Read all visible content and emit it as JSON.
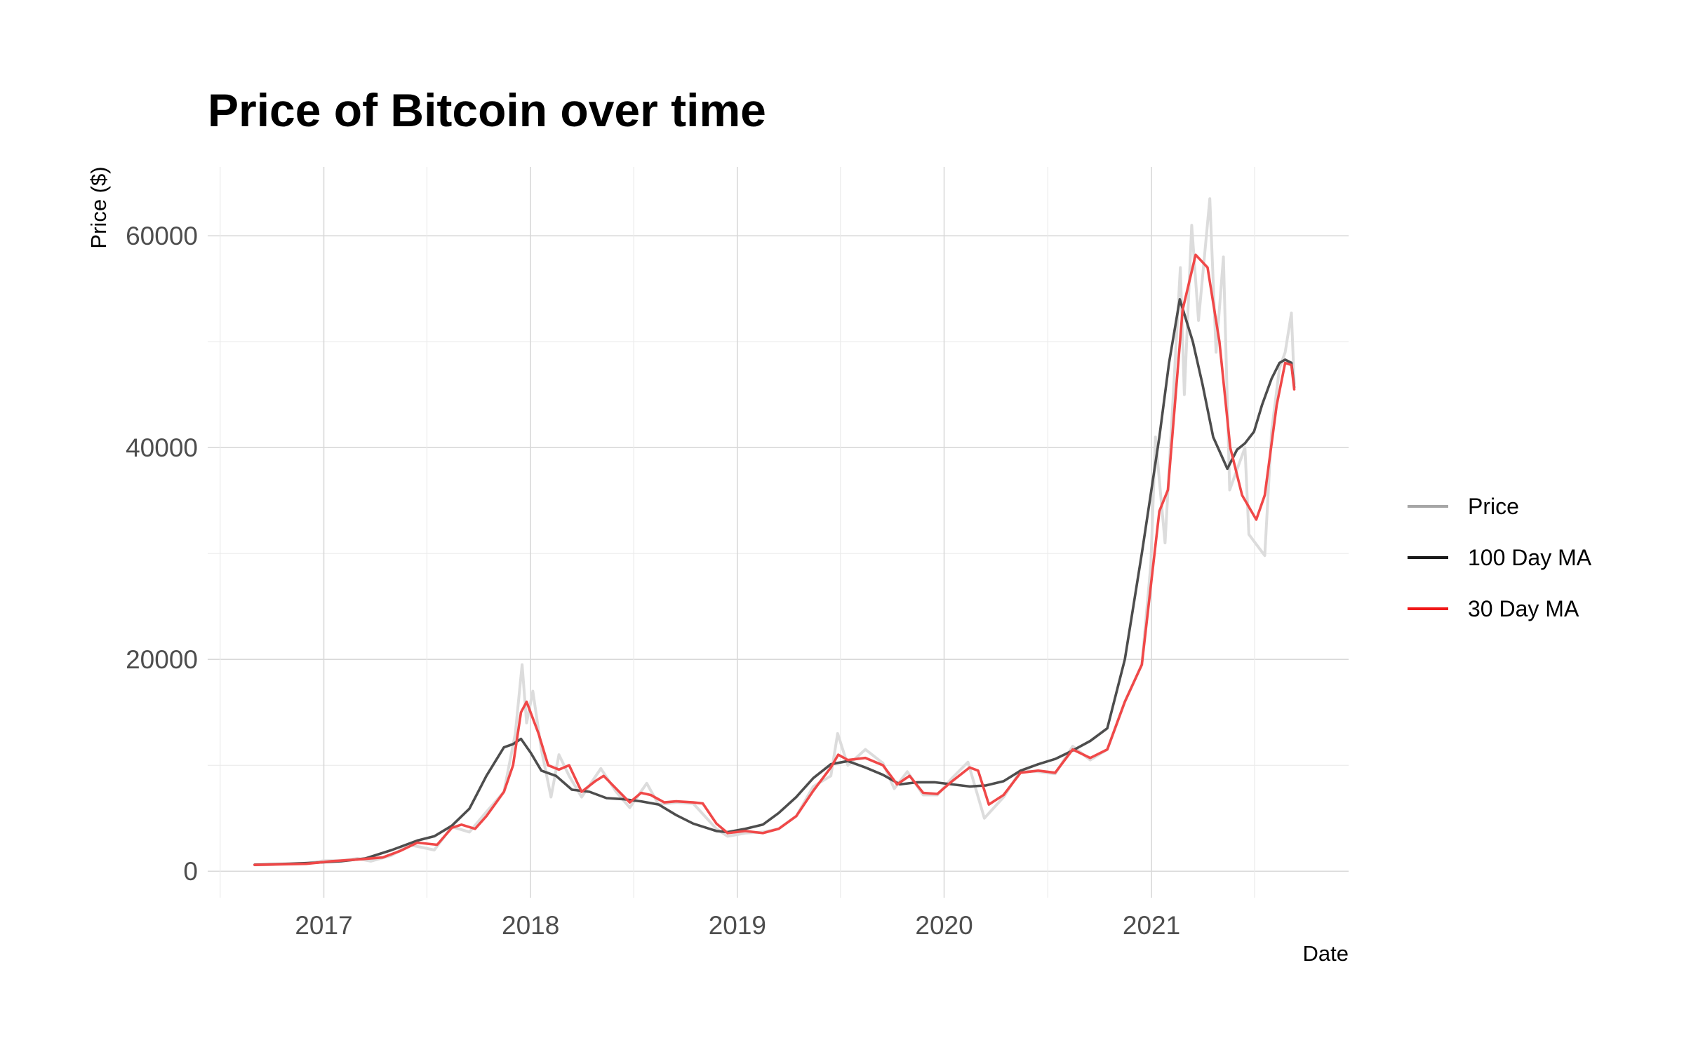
{
  "chart_data": {
    "type": "line",
    "title": "Price of Bitcoin over time",
    "xlabel": "Date",
    "ylabel": "Price ($)",
    "xlim": [
      "2016-06-10",
      "2021-12-15"
    ],
    "ylim": [
      -2500,
      66500
    ],
    "x_ticks": [
      "2017",
      "2018",
      "2019",
      "2020",
      "2021"
    ],
    "y_ticks": [
      0,
      20000,
      40000,
      60000
    ],
    "grid": true,
    "legend_position": "right",
    "colors": {
      "Price": "#dcdcdc",
      "100 Day MA": "#4d4d4d",
      "30 Day MA": "#f04848"
    },
    "legend_colors": {
      "Price": "#a6a6a6",
      "100 Day MA": "#1a1a1a",
      "30 Day MA": "#f01818"
    },
    "series": [
      {
        "name": "Price",
        "points": [
          [
            "2016-09-01",
            600
          ],
          [
            "2016-10-01",
            620
          ],
          [
            "2016-11-01",
            720
          ],
          [
            "2016-12-01",
            760
          ],
          [
            "2017-01-01",
            980
          ],
          [
            "2017-02-01",
            1000
          ],
          [
            "2017-03-01",
            1200
          ],
          [
            "2017-03-25",
            950
          ],
          [
            "2017-05-01",
            1500
          ],
          [
            "2017-06-01",
            2500
          ],
          [
            "2017-07-15",
            2000
          ],
          [
            "2017-08-15",
            4200
          ],
          [
            "2017-09-15",
            3700
          ],
          [
            "2017-10-15",
            5600
          ],
          [
            "2017-11-15",
            7500
          ],
          [
            "2017-12-05",
            13000
          ],
          [
            "2017-12-17",
            19500
          ],
          [
            "2017-12-25",
            14000
          ],
          [
            "2018-01-05",
            17000
          ],
          [
            "2018-01-20",
            11500
          ],
          [
            "2018-02-06",
            7000
          ],
          [
            "2018-02-20",
            11000
          ],
          [
            "2018-03-10",
            9000
          ],
          [
            "2018-04-01",
            7000
          ],
          [
            "2018-05-05",
            9700
          ],
          [
            "2018-06-01",
            7500
          ],
          [
            "2018-06-25",
            6000
          ],
          [
            "2018-07-25",
            8300
          ],
          [
            "2018-08-15",
            6300
          ],
          [
            "2018-09-15",
            6500
          ],
          [
            "2018-10-15",
            6400
          ],
          [
            "2018-11-25",
            4000
          ],
          [
            "2018-12-15",
            3300
          ],
          [
            "2019-01-15",
            3600
          ],
          [
            "2019-02-15",
            3700
          ],
          [
            "2019-03-15",
            4000
          ],
          [
            "2019-04-15",
            5200
          ],
          [
            "2019-05-15",
            8000
          ],
          [
            "2019-06-15",
            9000
          ],
          [
            "2019-06-27",
            13000
          ],
          [
            "2019-07-15",
            10000
          ],
          [
            "2019-08-15",
            11500
          ],
          [
            "2019-09-15",
            10200
          ],
          [
            "2019-10-05",
            7800
          ],
          [
            "2019-10-28",
            9400
          ],
          [
            "2019-11-25",
            7200
          ],
          [
            "2019-12-20",
            7200
          ],
          [
            "2020-01-15",
            8800
          ],
          [
            "2020-02-12",
            10300
          ],
          [
            "2020-03-12",
            5000
          ],
          [
            "2020-04-15",
            7000
          ],
          [
            "2020-05-15",
            9500
          ],
          [
            "2020-06-15",
            9400
          ],
          [
            "2020-07-15",
            9200
          ],
          [
            "2020-08-15",
            11800
          ],
          [
            "2020-09-15",
            10500
          ],
          [
            "2020-10-15",
            11500
          ],
          [
            "2020-11-15",
            16000
          ],
          [
            "2020-12-15",
            19500
          ],
          [
            "2020-12-31",
            29000
          ],
          [
            "2021-01-08",
            41000
          ],
          [
            "2021-01-25",
            31000
          ],
          [
            "2021-02-21",
            57000
          ],
          [
            "2021-02-28",
            45000
          ],
          [
            "2021-03-13",
            61000
          ],
          [
            "2021-03-25",
            52000
          ],
          [
            "2021-04-14",
            63500
          ],
          [
            "2021-04-25",
            49000
          ],
          [
            "2021-05-08",
            58000
          ],
          [
            "2021-05-19",
            36000
          ],
          [
            "2021-06-15",
            40000
          ],
          [
            "2021-06-22",
            31800
          ],
          [
            "2021-07-20",
            29800
          ],
          [
            "2021-08-01",
            41500
          ],
          [
            "2021-08-15",
            47500
          ],
          [
            "2021-08-25",
            49000
          ],
          [
            "2021-09-05",
            52700
          ],
          [
            "2021-09-10",
            46000
          ]
        ]
      },
      {
        "name": "100 Day MA",
        "points": [
          [
            "2016-09-01",
            620
          ],
          [
            "2016-11-01",
            700
          ],
          [
            "2016-12-15",
            800
          ],
          [
            "2017-02-01",
            950
          ],
          [
            "2017-03-15",
            1200
          ],
          [
            "2017-05-01",
            2000
          ],
          [
            "2017-06-15",
            2900
          ],
          [
            "2017-07-15",
            3300
          ],
          [
            "2017-08-15",
            4300
          ],
          [
            "2017-09-15",
            5900
          ],
          [
            "2017-10-15",
            9000
          ],
          [
            "2017-11-15",
            11700
          ],
          [
            "2017-12-01",
            12000
          ],
          [
            "2017-12-15",
            12500
          ],
          [
            "2018-01-01",
            11200
          ],
          [
            "2018-01-20",
            9500
          ],
          [
            "2018-02-15",
            9000
          ],
          [
            "2018-03-15",
            7700
          ],
          [
            "2018-04-15",
            7500
          ],
          [
            "2018-05-15",
            6900
          ],
          [
            "2018-06-15",
            6800
          ],
          [
            "2018-07-15",
            6600
          ],
          [
            "2018-08-15",
            6300
          ],
          [
            "2018-09-15",
            5300
          ],
          [
            "2018-10-15",
            4500
          ],
          [
            "2018-11-25",
            3800
          ],
          [
            "2018-12-15",
            3700
          ],
          [
            "2019-01-15",
            4000
          ],
          [
            "2019-02-15",
            4400
          ],
          [
            "2019-03-15",
            5500
          ],
          [
            "2019-04-15",
            7000
          ],
          [
            "2019-05-15",
            8800
          ],
          [
            "2019-06-15",
            10100
          ],
          [
            "2019-07-15",
            10400
          ],
          [
            "2019-08-15",
            9800
          ],
          [
            "2019-09-15",
            9100
          ],
          [
            "2019-10-15",
            8200
          ],
          [
            "2019-11-15",
            8400
          ],
          [
            "2019-12-15",
            8400
          ],
          [
            "2020-01-15",
            8200
          ],
          [
            "2020-02-15",
            8000
          ],
          [
            "2020-03-15",
            8100
          ],
          [
            "2020-04-15",
            8500
          ],
          [
            "2020-05-15",
            9500
          ],
          [
            "2020-06-15",
            10100
          ],
          [
            "2020-07-15",
            10600
          ],
          [
            "2020-08-15",
            11400
          ],
          [
            "2020-09-15",
            12300
          ],
          [
            "2020-10-15",
            13500
          ],
          [
            "2020-11-15",
            20000
          ],
          [
            "2020-12-15",
            30000
          ],
          [
            "2021-01-15",
            41000
          ],
          [
            "2021-02-01",
            48000
          ],
          [
            "2021-02-20",
            54000
          ],
          [
            "2021-03-15",
            50000
          ],
          [
            "2021-04-01",
            46000
          ],
          [
            "2021-04-20",
            41000
          ],
          [
            "2021-05-15",
            38000
          ],
          [
            "2021-06-01",
            39800
          ],
          [
            "2021-06-15",
            40400
          ],
          [
            "2021-07-01",
            41500
          ],
          [
            "2021-07-15",
            44000
          ],
          [
            "2021-08-01",
            46500
          ],
          [
            "2021-08-15",
            48000
          ],
          [
            "2021-08-25",
            48300
          ],
          [
            "2021-09-05",
            48000
          ],
          [
            "2021-09-10",
            45700
          ]
        ]
      },
      {
        "name": "30 Day MA",
        "points": [
          [
            "2016-09-01",
            600
          ],
          [
            "2016-12-01",
            700
          ],
          [
            "2017-01-15",
            950
          ],
          [
            "2017-03-01",
            1100
          ],
          [
            "2017-04-15",
            1300
          ],
          [
            "2017-05-15",
            1900
          ],
          [
            "2017-06-15",
            2700
          ],
          [
            "2017-07-20",
            2500
          ],
          [
            "2017-08-15",
            4100
          ],
          [
            "2017-09-01",
            4400
          ],
          [
            "2017-09-25",
            4000
          ],
          [
            "2017-10-15",
            5200
          ],
          [
            "2017-11-15",
            7500
          ],
          [
            "2017-12-01",
            10000
          ],
          [
            "2017-12-15",
            15000
          ],
          [
            "2017-12-25",
            16000
          ],
          [
            "2018-01-15",
            13000
          ],
          [
            "2018-02-01",
            10000
          ],
          [
            "2018-02-20",
            9600
          ],
          [
            "2018-03-10",
            10000
          ],
          [
            "2018-04-01",
            7500
          ],
          [
            "2018-04-25",
            8500
          ],
          [
            "2018-05-10",
            9000
          ],
          [
            "2018-06-01",
            7800
          ],
          [
            "2018-06-25",
            6500
          ],
          [
            "2018-07-15",
            7400
          ],
          [
            "2018-08-01",
            7200
          ],
          [
            "2018-08-25",
            6500
          ],
          [
            "2018-09-15",
            6600
          ],
          [
            "2018-10-15",
            6500
          ],
          [
            "2018-11-01",
            6400
          ],
          [
            "2018-11-25",
            4500
          ],
          [
            "2018-12-15",
            3600
          ],
          [
            "2019-01-15",
            3800
          ],
          [
            "2019-02-15",
            3600
          ],
          [
            "2019-03-15",
            4000
          ],
          [
            "2019-04-15",
            5200
          ],
          [
            "2019-05-15",
            7600
          ],
          [
            "2019-06-15",
            9800
          ],
          [
            "2019-06-28",
            11000
          ],
          [
            "2019-07-15",
            10500
          ],
          [
            "2019-08-15",
            10700
          ],
          [
            "2019-09-15",
            10000
          ],
          [
            "2019-10-10",
            8200
          ],
          [
            "2019-11-01",
            9000
          ],
          [
            "2019-11-25",
            7400
          ],
          [
            "2019-12-20",
            7300
          ],
          [
            "2020-01-15",
            8500
          ],
          [
            "2020-02-15",
            9800
          ],
          [
            "2020-03-01",
            9500
          ],
          [
            "2020-03-20",
            6300
          ],
          [
            "2020-04-15",
            7200
          ],
          [
            "2020-05-15",
            9300
          ],
          [
            "2020-06-15",
            9500
          ],
          [
            "2020-07-15",
            9300
          ],
          [
            "2020-08-15",
            11500
          ],
          [
            "2020-09-15",
            10700
          ],
          [
            "2020-10-15",
            11500
          ],
          [
            "2020-11-15",
            16000
          ],
          [
            "2020-12-15",
            19500
          ],
          [
            "2021-01-15",
            34000
          ],
          [
            "2021-01-30",
            36000
          ],
          [
            "2021-02-25",
            53000
          ],
          [
            "2021-03-20",
            58200
          ],
          [
            "2021-04-10",
            57000
          ],
          [
            "2021-05-01",
            50000
          ],
          [
            "2021-05-20",
            40000
          ],
          [
            "2021-06-10",
            35500
          ],
          [
            "2021-07-05",
            33200
          ],
          [
            "2021-07-20",
            35500
          ],
          [
            "2021-08-10",
            44000
          ],
          [
            "2021-08-25",
            48000
          ],
          [
            "2021-09-05",
            47800
          ],
          [
            "2021-09-10",
            45500
          ]
        ]
      }
    ]
  }
}
